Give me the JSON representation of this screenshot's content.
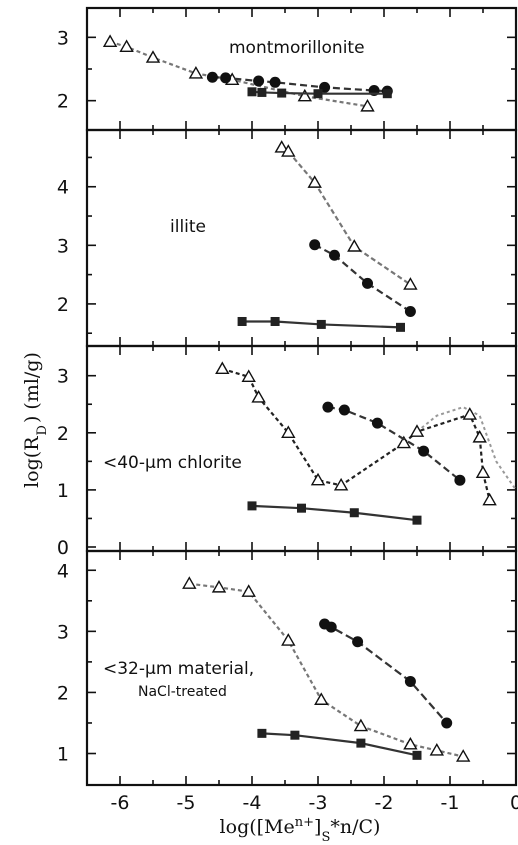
{
  "chart_data": [
    {
      "type": "line",
      "panel": "montmorillonite",
      "label": "montmorillonite",
      "xlim": [
        -6.5,
        0
      ],
      "ylim": [
        1.6,
        3.4
      ],
      "yticks": [
        "2",
        "3"
      ],
      "ytick_values": [
        2,
        3
      ],
      "series": [
        {
          "marker": "triangle",
          "color": "#777777",
          "dash": "4 3",
          "points": [
            [
              -6.15,
              2.93
            ],
            [
              -5.9,
              2.85
            ],
            [
              -5.5,
              2.68
            ],
            [
              -4.85,
              2.43
            ],
            [
              -4.3,
              2.33
            ],
            [
              -3.2,
              2.07
            ],
            [
              -2.25,
              1.91
            ]
          ]
        },
        {
          "marker": "circle",
          "color": "#333333",
          "dash": "7 4",
          "points": [
            [
              -4.6,
              2.37
            ],
            [
              -4.4,
              2.36
            ],
            [
              -3.9,
              2.31
            ],
            [
              -3.65,
              2.29
            ],
            [
              -2.9,
              2.21
            ],
            [
              -2.15,
              2.16
            ],
            [
              -1.95,
              2.15
            ]
          ]
        },
        {
          "marker": "square",
          "color": "#333333",
          "dash": "",
          "points": [
            [
              -4.0,
              2.14
            ],
            [
              -3.85,
              2.13
            ],
            [
              -3.55,
              2.12
            ],
            [
              -3.0,
              2.11
            ],
            [
              -1.95,
              2.11
            ]
          ]
        }
      ]
    },
    {
      "type": "line",
      "panel": "illite",
      "label": "illite",
      "xlim": [
        -6.5,
        0
      ],
      "ylim": [
        1.35,
        4.9
      ],
      "yticks": [
        "2",
        "3",
        "4"
      ],
      "ytick_values": [
        2,
        3,
        4
      ],
      "series": [
        {
          "marker": "triangle",
          "color": "#777777",
          "dash": "5 3",
          "points": [
            [
              -3.55,
              4.67
            ],
            [
              -3.45,
              4.6
            ],
            [
              -3.05,
              4.07
            ],
            [
              -2.45,
              2.98
            ],
            [
              -1.6,
              2.33
            ]
          ]
        },
        {
          "marker": "circle",
          "color": "#333333",
          "dash": "7 4",
          "points": [
            [
              -3.05,
              3.01
            ],
            [
              -2.75,
              2.83
            ],
            [
              -2.25,
              2.35
            ],
            [
              -1.6,
              1.87
            ]
          ]
        },
        {
          "marker": "square",
          "color": "#333333",
          "dash": "",
          "points": [
            [
              -4.15,
              1.7
            ],
            [
              -3.65,
              1.7
            ],
            [
              -2.95,
              1.65
            ],
            [
              -1.75,
              1.6
            ]
          ]
        }
      ]
    },
    {
      "type": "line",
      "panel": "chlorite",
      "label": "<40-μm chlorite",
      "xlim": [
        -6.5,
        0
      ],
      "ylim": [
        0,
        3.45
      ],
      "yticks": [
        "0",
        "1",
        "2",
        "3"
      ],
      "ytick_values": [
        0,
        1,
        2,
        3
      ],
      "series": [
        {
          "marker": "triangle",
          "color": "#222222",
          "dash": "4 3",
          "points": [
            [
              -4.45,
              3.12
            ],
            [
              -4.05,
              2.98
            ],
            [
              -3.9,
              2.62
            ],
            [
              -3.45,
              2.0
            ],
            [
              -3.0,
              1.17
            ],
            [
              -2.65,
              1.08
            ],
            [
              -1.7,
              1.82
            ],
            [
              -1.5,
              2.02
            ],
            [
              -0.7,
              2.32
            ],
            [
              -0.55,
              1.92
            ],
            [
              -0.5,
              1.3
            ],
            [
              -0.4,
              0.82
            ]
          ]
        },
        {
          "marker": "circle",
          "color": "#333333",
          "dash": "7 4",
          "points": [
            [
              -2.85,
              2.45
            ],
            [
              -2.6,
              2.4
            ],
            [
              -2.1,
              2.17
            ],
            [
              -1.4,
              1.68
            ],
            [
              -0.85,
              1.17
            ]
          ]
        },
        {
          "marker": "square",
          "color": "#333333",
          "dash": "",
          "points": [
            [
              -4.0,
              0.72
            ],
            [
              -3.25,
              0.68
            ],
            [
              -2.45,
              0.6
            ],
            [
              -1.5,
              0.47
            ]
          ]
        }
      ],
      "extra_line": [
        [
          -1.5,
          2.02
        ],
        [
          -1.2,
          2.3
        ],
        [
          -0.8,
          2.45
        ],
        [
          -0.55,
          2.3
        ],
        [
          -0.3,
          1.5
        ],
        [
          0,
          1.0
        ]
      ]
    },
    {
      "type": "line",
      "panel": "material",
      "label": "<32-μm material,",
      "label2": "NaCl-treated",
      "xlim": [
        -6.5,
        0
      ],
      "ylim": [
        0.55,
        4.25
      ],
      "yticks": [
        "1",
        "2",
        "3",
        "4"
      ],
      "ytick_values": [
        1,
        2,
        3,
        4
      ],
      "xticks": [
        "-6",
        "-5",
        "-4",
        "-3",
        "-2",
        "-1",
        "0"
      ],
      "xtick_values": [
        -6,
        -5,
        -4,
        -3,
        -2,
        -1,
        0
      ],
      "series": [
        {
          "marker": "triangle",
          "color": "#777777",
          "dash": "4 3",
          "points": [
            [
              -4.95,
              3.78
            ],
            [
              -4.5,
              3.72
            ],
            [
              -4.05,
              3.65
            ],
            [
              -3.45,
              2.85
            ],
            [
              -2.95,
              1.88
            ],
            [
              -2.35,
              1.45
            ],
            [
              -1.6,
              1.15
            ],
            [
              -1.2,
              1.05
            ],
            [
              -0.8,
              0.95
            ]
          ]
        },
        {
          "marker": "circle",
          "color": "#333333",
          "dash": "8 4",
          "points": [
            [
              -2.9,
              3.12
            ],
            [
              -2.8,
              3.07
            ],
            [
              -2.4,
              2.83
            ],
            [
              -1.6,
              2.18
            ],
            [
              -1.05,
              1.5
            ]
          ]
        },
        {
          "marker": "square",
          "color": "#333333",
          "dash": "",
          "points": [
            [
              -3.85,
              1.33
            ],
            [
              -3.35,
              1.3
            ],
            [
              -2.35,
              1.17
            ],
            [
              -1.5,
              0.97
            ]
          ]
        }
      ]
    }
  ],
  "axes": {
    "ylabel": "log(R_D) (ml/g)",
    "xlabel": "log([Me^n+]_S*n/C)"
  }
}
